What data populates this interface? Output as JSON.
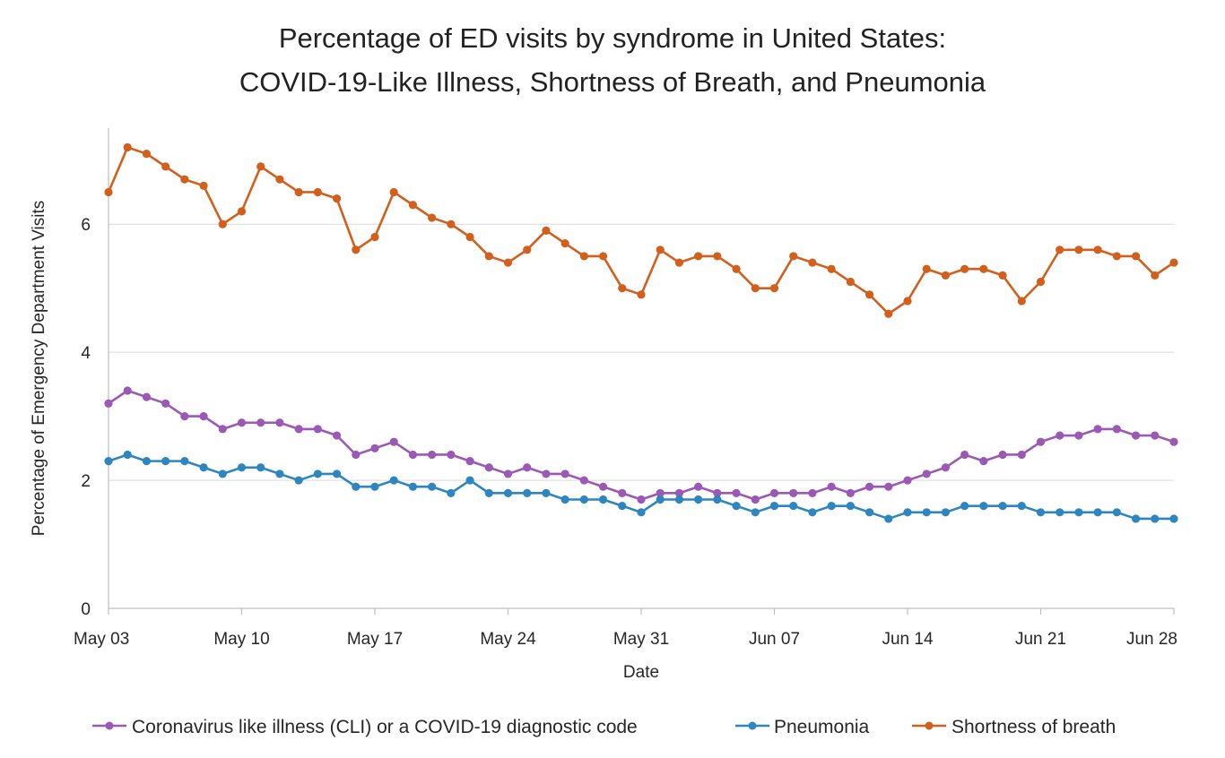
{
  "chart_data": {
    "type": "line",
    "title_lines": [
      "Percentage of ED visits by syndrome in United States:",
      "COVID-19-Like Illness, Shortness of Breath, and Pneumonia"
    ],
    "xlabel": "Date",
    "ylabel": "Percentage of Emergency Department Visits",
    "ylim": [
      0,
      7.5
    ],
    "yticks": [
      0,
      2,
      4,
      6
    ],
    "xlim": [
      "2020-05-03",
      "2020-06-28"
    ],
    "xtick_labels": [
      "May 03",
      "May 10",
      "May 17",
      "May 24",
      "May 31",
      "Jun 07",
      "Jun 14",
      "Jun 21",
      "Jun 28"
    ],
    "grid": "horizontal",
    "legend_position": "bottom",
    "x": [
      "May 03",
      "May 04",
      "May 05",
      "May 06",
      "May 07",
      "May 08",
      "May 09",
      "May 10",
      "May 11",
      "May 12",
      "May 13",
      "May 14",
      "May 15",
      "May 16",
      "May 17",
      "May 18",
      "May 19",
      "May 20",
      "May 21",
      "May 22",
      "May 23",
      "May 24",
      "May 25",
      "May 26",
      "May 27",
      "May 28",
      "May 29",
      "May 30",
      "May 31",
      "Jun 01",
      "Jun 02",
      "Jun 03",
      "Jun 04",
      "Jun 05",
      "Jun 06",
      "Jun 07",
      "Jun 08",
      "Jun 09",
      "Jun 10",
      "Jun 11",
      "Jun 12",
      "Jun 13",
      "Jun 14",
      "Jun 15",
      "Jun 16",
      "Jun 17",
      "Jun 18",
      "Jun 19",
      "Jun 20",
      "Jun 21",
      "Jun 22",
      "Jun 23",
      "Jun 24",
      "Jun 25",
      "Jun 26",
      "Jun 27",
      "Jun 28"
    ],
    "series": [
      {
        "name": "Coronavirus like illness (CLI) or a COVID-19 diagnostic code",
        "color": "#9b59b6",
        "values": [
          3.2,
          3.4,
          3.3,
          3.2,
          3.0,
          3.0,
          2.8,
          2.9,
          2.9,
          2.9,
          2.8,
          2.8,
          2.7,
          2.4,
          2.5,
          2.6,
          2.4,
          2.4,
          2.4,
          2.3,
          2.2,
          2.1,
          2.2,
          2.1,
          2.1,
          2.0,
          1.9,
          1.8,
          1.7,
          1.8,
          1.8,
          1.9,
          1.8,
          1.8,
          1.7,
          1.8,
          1.8,
          1.8,
          1.9,
          1.8,
          1.9,
          1.9,
          2.0,
          2.1,
          2.2,
          2.4,
          2.3,
          2.4,
          2.4,
          2.6,
          2.7,
          2.7,
          2.8,
          2.8,
          2.7,
          2.7,
          2.6
        ]
      },
      {
        "name": "Pneumonia",
        "color": "#2e86c1",
        "values": [
          2.3,
          2.4,
          2.3,
          2.3,
          2.3,
          2.2,
          2.1,
          2.2,
          2.2,
          2.1,
          2.0,
          2.1,
          2.1,
          1.9,
          1.9,
          2.0,
          1.9,
          1.9,
          1.8,
          2.0,
          1.8,
          1.8,
          1.8,
          1.8,
          1.7,
          1.7,
          1.7,
          1.6,
          1.5,
          1.7,
          1.7,
          1.7,
          1.7,
          1.6,
          1.5,
          1.6,
          1.6,
          1.5,
          1.6,
          1.6,
          1.5,
          1.4,
          1.5,
          1.5,
          1.5,
          1.6,
          1.6,
          1.6,
          1.6,
          1.5,
          1.5,
          1.5,
          1.5,
          1.5,
          1.4,
          1.4,
          1.4
        ]
      },
      {
        "name": "Shortness of breath",
        "color": "#d35f1c",
        "values": [
          6.5,
          7.2,
          7.1,
          6.9,
          6.7,
          6.6,
          6.0,
          6.2,
          6.9,
          6.7,
          6.5,
          6.5,
          6.4,
          5.6,
          5.8,
          6.5,
          6.3,
          6.1,
          6.0,
          5.8,
          5.5,
          5.4,
          5.6,
          5.9,
          5.7,
          5.5,
          5.5,
          5.0,
          4.9,
          5.6,
          5.4,
          5.5,
          5.5,
          5.3,
          5.0,
          5.0,
          5.5,
          5.4,
          5.3,
          5.1,
          4.9,
          4.6,
          4.8,
          5.3,
          5.2,
          5.3,
          5.3,
          5.2,
          4.8,
          5.1,
          5.6,
          5.6,
          5.6,
          5.5,
          5.5,
          5.2,
          5.4
        ]
      }
    ]
  }
}
